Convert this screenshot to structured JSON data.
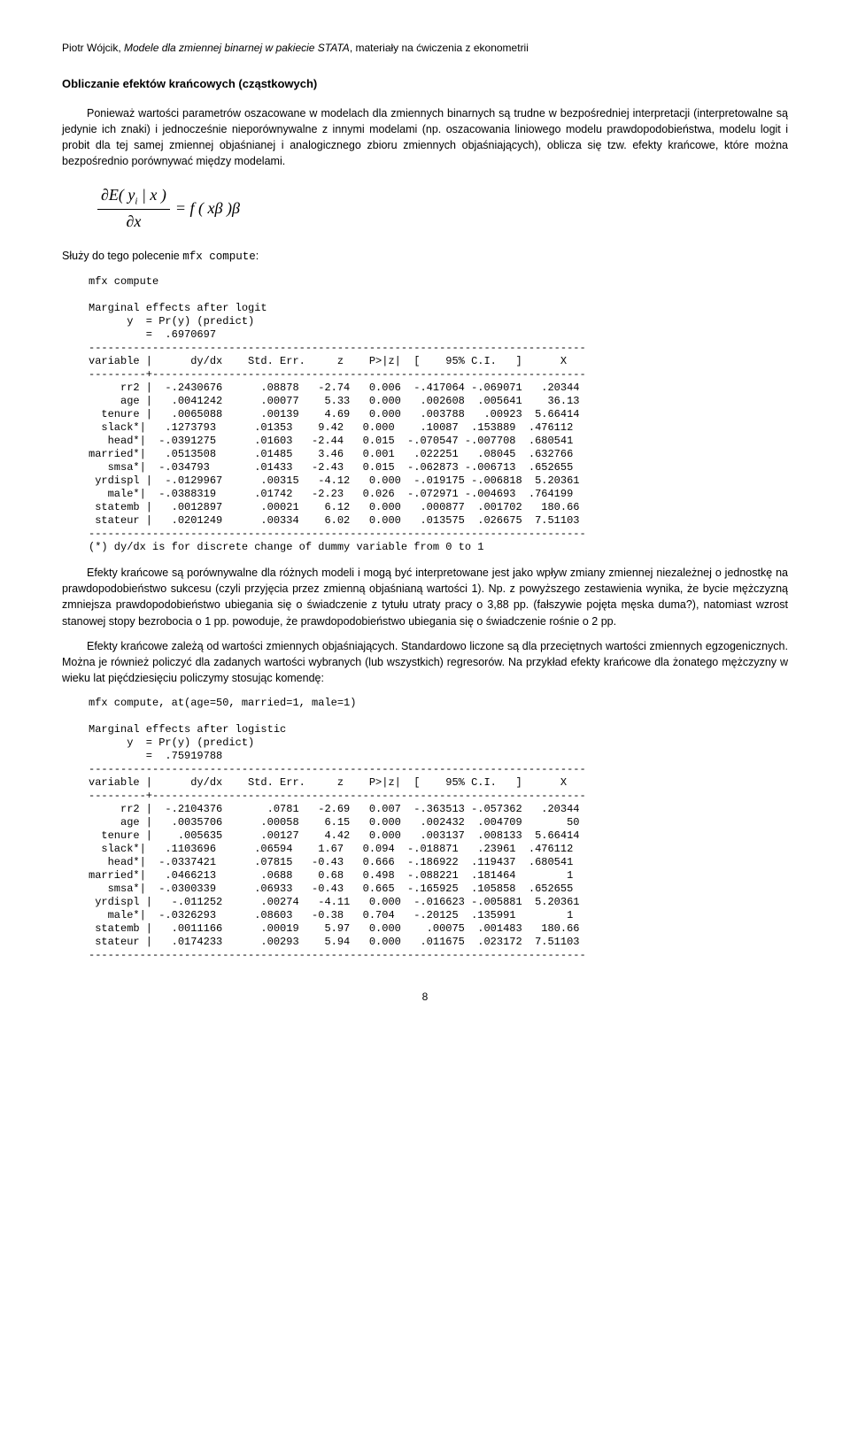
{
  "header": {
    "author": "Piotr Wójcik, ",
    "title": "Modele dla zmiennej binarnej w pakiecie STATA",
    "suffix": ", materiały na ćwiczenia z ekonometrii"
  },
  "section_title": "Obliczanie efektów krańcowych (cząstkowych)",
  "para1": "Ponieważ wartości parametrów oszacowane w modelach dla zmiennych binarnych są trudne w bezpośredniej interpretacji (interpretowalne są jedynie ich znaki) i jednocześnie nieporównywalne z innymi modelami (np. oszacowania liniowego modelu prawdopodobieństwa, modelu logit i probit dla tej samej zmiennej objaśnianej i analogicznego zbioru zmiennych objaśniających), oblicza się tzw. efekty krańcowe, które można bezpośrednio porównywać między modelami.",
  "formula": {
    "num": "∂E( y",
    "num_sub": "i",
    "num_after": " | x )",
    "den": "∂x",
    "rhs": "= f ( xβ )β"
  },
  "inline_before_cmd": "Służy do tego polecenie ",
  "inline_cmd": "mfx compute",
  "inline_after_cmd": ":",
  "code_block_1": "mfx compute\n\nMarginal effects after logit\n      y  = Pr(y) (predict)\n         =  .6970697\n------------------------------------------------------------------------------\nvariable |      dy/dx    Std. Err.     z    P>|z|  [    95% C.I.   ]      X\n---------+--------------------------------------------------------------------\n     rr2 |  -.2430676      .08878   -2.74   0.006  -.417064 -.069071   .20344\n     age |   .0041242      .00077    5.33   0.000   .002608  .005641    36.13\n  tenure |   .0065088      .00139    4.69   0.000   .003788   .00923  5.66414\n  slack*|   .1273793      .01353    9.42   0.000    .10087  .153889  .476112\n   head*|  -.0391275      .01603   -2.44   0.015  -.070547 -.007708  .680541\nmarried*|   .0513508      .01485    3.46   0.001   .022251   .08045  .632766\n   smsa*|  -.034793       .01433   -2.43   0.015  -.062873 -.006713  .652655\n yrdispl |  -.0129967      .00315   -4.12   0.000  -.019175 -.006818  5.20361\n   male*|  -.0388319      .01742   -2.23   0.026  -.072971 -.004693  .764199\n statemb |   .0012897      .00021    6.12   0.000   .000877  .001702   180.66\n stateur |   .0201249      .00334    6.02   0.000   .013575  .026675  7.51103\n------------------------------------------------------------------------------\n(*) dy/dx is for discrete change of dummy variable from 0 to 1",
  "para2": "Efekty krańcowe są porównywalne dla różnych modeli i mogą być interpretowane jest jako wpływ zmiany zmiennej niezależnej o jednostkę na prawdopodobieństwo sukcesu (czyli przyjęcia przez zmienną objaśnianą wartości 1). Np. z powyższego zestawienia wynika, że bycie mężczyzną zmniejsza prawdopodobieństwo ubiegania się o świadczenie z tytułu utraty pracy o 3,88 pp. (fałszywie pojęta męska duma?), natomiast wzrost stanowej stopy bezrobocia o 1 pp. powoduje, że prawdopodobieństwo ubiegania się o świadczenie rośnie o 2 pp.",
  "para3": "Efekty krańcowe zależą od wartości zmiennych objaśniających. Standardowo liczone są dla przeciętnych wartości zmiennych egzogenicznych. Można je również policzyć dla zadanych wartości wybranych (lub wszystkich) regresorów. Na przykład efekty krańcowe dla żonatego mężczyzny w wieku lat pięćdziesięciu policzymy stosując komendę:",
  "code_block_2": "mfx compute, at(age=50, married=1, male=1)\n\nMarginal effects after logistic\n      y  = Pr(y) (predict)\n         =  .75919788\n------------------------------------------------------------------------------\nvariable |      dy/dx    Std. Err.     z    P>|z|  [    95% C.I.   ]      X\n---------+--------------------------------------------------------------------\n     rr2 |  -.2104376       .0781   -2.69   0.007  -.363513 -.057362   .20344\n     age |   .0035706      .00058    6.15   0.000   .002432  .004709       50\n  tenure |    .005635      .00127    4.42   0.000   .003137  .008133  5.66414\n  slack*|   .1103696      .06594    1.67   0.094  -.018871   .23961  .476112\n   head*|  -.0337421      .07815   -0.43   0.666  -.186922  .119437  .680541\nmarried*|   .0466213       .0688    0.68   0.498  -.088221  .181464        1\n   smsa*|  -.0300339      .06933   -0.43   0.665  -.165925  .105858  .652655\n yrdispl |   -.011252      .00274   -4.11   0.000  -.016623 -.005881  5.20361\n   male*|  -.0326293      .08603   -0.38   0.704   -.20125  .135991        1\n statemb |   .0011166      .00019    5.97   0.000    .00075  .001483   180.66\n stateur |   .0174233      .00293    5.94   0.000   .011675  .023172  7.51103\n------------------------------------------------------------------------------",
  "page_number": "8"
}
